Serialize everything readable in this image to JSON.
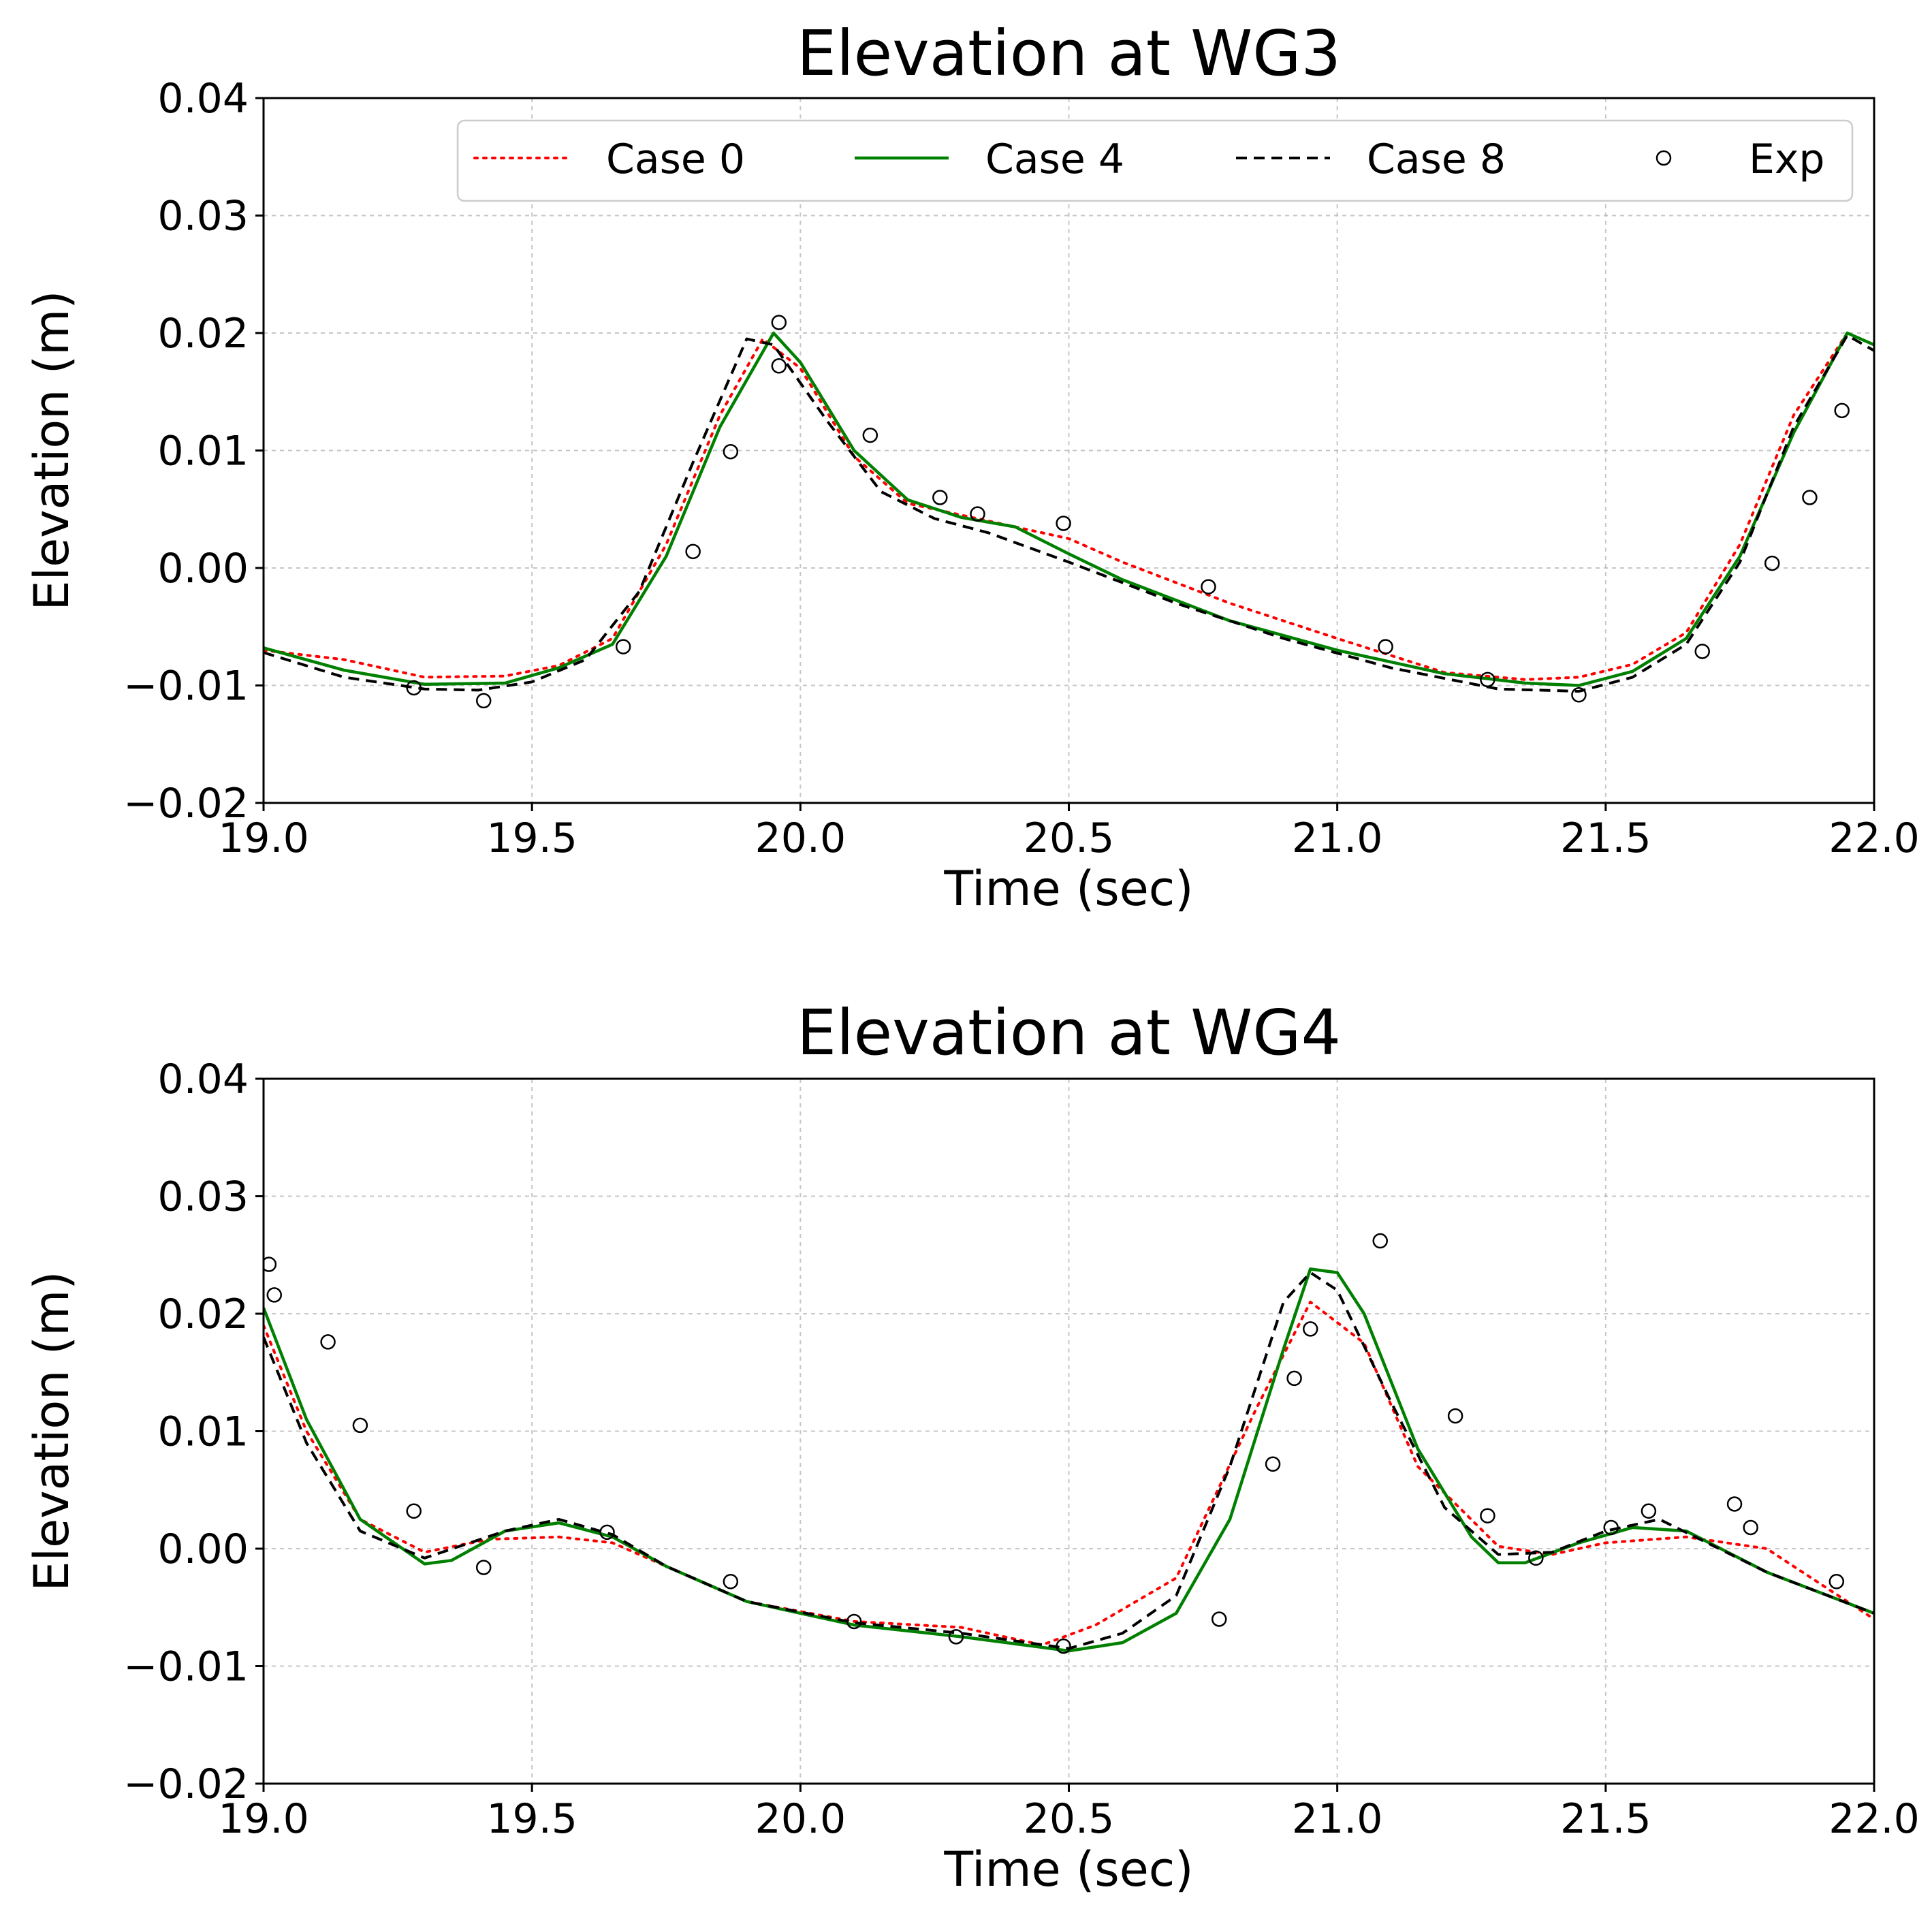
{
  "chart_data": [
    {
      "type": "line",
      "title": "Elevation at WG3",
      "xlabel": "Time (sec)",
      "ylabel": "Elevation (m)",
      "xlim": [
        19.0,
        22.0
      ],
      "ylim": [
        -0.02,
        0.04
      ],
      "xticks": [
        "19.0",
        "19.5",
        "20.0",
        "20.5",
        "21.0",
        "21.5",
        "22.0"
      ],
      "yticks": [
        "−0.02",
        "−0.01",
        "0.00",
        "0.01",
        "0.02",
        "0.03",
        "0.04"
      ],
      "grid": true,
      "legend_position": "top-right",
      "series": [
        {
          "name": "Case 0",
          "style": "dotted",
          "color": "#ff0000",
          "x": [
            19.0,
            19.15,
            19.3,
            19.45,
            19.55,
            19.65,
            19.75,
            19.85,
            19.93,
            20.0,
            20.1,
            20.2,
            20.3,
            20.4,
            20.5,
            20.6,
            20.8,
            21.0,
            21.2,
            21.35,
            21.45,
            21.55,
            21.65,
            21.75,
            21.85,
            21.95,
            22.0
          ],
          "y": [
            -0.007,
            -0.0078,
            -0.0093,
            -0.0092,
            -0.0083,
            -0.006,
            0.002,
            0.013,
            0.0195,
            0.017,
            0.0095,
            0.0055,
            0.0045,
            0.0035,
            0.0025,
            0.0005,
            -0.003,
            -0.006,
            -0.0089,
            -0.0095,
            -0.0093,
            -0.0082,
            -0.0055,
            0.002,
            0.013,
            0.02,
            0.019
          ]
        },
        {
          "name": "Case 4",
          "style": "solid",
          "color": "#008000",
          "x": [
            19.0,
            19.15,
            19.3,
            19.45,
            19.55,
            19.65,
            19.75,
            19.85,
            19.95,
            20.0,
            20.1,
            20.2,
            20.3,
            20.4,
            20.5,
            20.6,
            20.8,
            21.0,
            21.2,
            21.35,
            21.45,
            21.55,
            21.65,
            21.75,
            21.85,
            21.95,
            22.0
          ],
          "y": [
            -0.0068,
            -0.0087,
            -0.0099,
            -0.0098,
            -0.0085,
            -0.0065,
            0.001,
            0.012,
            0.02,
            0.0175,
            0.01,
            0.0058,
            0.0043,
            0.0035,
            0.0012,
            -0.001,
            -0.0045,
            -0.007,
            -0.009,
            -0.0098,
            -0.01,
            -0.0088,
            -0.006,
            0.001,
            0.0115,
            0.02,
            0.019
          ]
        },
        {
          "name": "Case 8",
          "style": "dashed",
          "color": "#000000",
          "x": [
            19.0,
            19.15,
            19.3,
            19.4,
            19.5,
            19.6,
            19.7,
            19.8,
            19.9,
            19.95,
            20.05,
            20.15,
            20.25,
            20.35,
            20.5,
            20.7,
            20.9,
            21.1,
            21.3,
            21.45,
            21.55,
            21.65,
            21.75,
            21.85,
            21.95,
            22.0
          ],
          "y": [
            -0.0072,
            -0.0093,
            -0.0103,
            -0.0104,
            -0.0097,
            -0.0078,
            -0.002,
            0.009,
            0.0195,
            0.019,
            0.0125,
            0.0065,
            0.0042,
            0.003,
            0.0005,
            -0.003,
            -0.006,
            -0.0085,
            -0.0103,
            -0.0105,
            -0.0093,
            -0.0065,
            0.0005,
            0.012,
            0.0198,
            0.0185
          ]
        },
        {
          "name": "Exp",
          "style": "markers",
          "color": "#000000",
          "x": [
            19.28,
            19.41,
            19.67,
            19.8,
            19.87,
            19.96,
            19.96,
            20.13,
            20.26,
            20.33,
            20.49,
            20.76,
            21.09,
            21.28,
            21.45,
            21.68,
            21.81,
            21.88,
            21.94
          ],
          "y": [
            -0.0102,
            -0.0113,
            -0.0067,
            0.0014,
            0.0099,
            0.0209,
            0.0172,
            0.0113,
            0.006,
            0.0046,
            0.0038,
            -0.0016,
            -0.0067,
            -0.0095,
            -0.0108,
            -0.0071,
            0.0004,
            0.006,
            0.0134
          ]
        }
      ]
    },
    {
      "type": "line",
      "title": "Elevation at WG4",
      "xlabel": "Time (sec)",
      "ylabel": "Elevation (m)",
      "xlim": [
        19.0,
        22.0
      ],
      "ylim": [
        -0.02,
        0.04
      ],
      "xticks": [
        "19.0",
        "19.5",
        "20.0",
        "20.5",
        "21.0",
        "21.5",
        "22.0"
      ],
      "yticks": [
        "−0.02",
        "−0.01",
        "0.00",
        "0.01",
        "0.02",
        "0.03",
        "0.04"
      ],
      "grid": true,
      "series": [
        {
          "name": "Case 0",
          "style": "dotted",
          "color": "#ff0000",
          "x": [
            19.0,
            19.08,
            19.18,
            19.3,
            19.42,
            19.55,
            19.65,
            19.75,
            19.9,
            20.1,
            20.3,
            20.45,
            20.55,
            20.7,
            20.85,
            20.95,
            21.05,
            21.15,
            21.3,
            21.4,
            21.5,
            21.65,
            21.8,
            21.95,
            22.0
          ],
          "y": [
            0.019,
            0.01,
            0.0025,
            -0.0003,
            0.0008,
            0.001,
            0.0005,
            -0.0015,
            -0.0045,
            -0.0062,
            -0.0067,
            -0.0082,
            -0.0065,
            -0.0025,
            0.012,
            0.021,
            0.0175,
            0.007,
            0.0002,
            -0.0005,
            0.0005,
            0.001,
            0.0,
            -0.0045,
            -0.006
          ]
        },
        {
          "name": "Case 4",
          "style": "solid",
          "color": "#008000",
          "x": [
            19.0,
            19.08,
            19.18,
            19.3,
            19.35,
            19.45,
            19.55,
            19.65,
            19.75,
            19.9,
            20.1,
            20.3,
            20.5,
            20.6,
            20.7,
            20.8,
            20.9,
            20.95,
            21.0,
            21.05,
            21.15,
            21.25,
            21.3,
            21.35,
            21.45,
            21.55,
            21.65,
            21.8,
            22.0
          ],
          "y": [
            0.0205,
            0.011,
            0.0025,
            -0.0013,
            -0.001,
            0.0015,
            0.0022,
            0.001,
            -0.0015,
            -0.0045,
            -0.0065,
            -0.0075,
            -0.0087,
            -0.008,
            -0.0055,
            0.0025,
            0.017,
            0.0238,
            0.0235,
            0.02,
            0.0085,
            0.001,
            -0.0012,
            -0.0012,
            0.0005,
            0.0018,
            0.0015,
            -0.002,
            -0.0055
          ]
        },
        {
          "name": "Case 8",
          "style": "dashed",
          "color": "#000000",
          "x": [
            19.0,
            19.08,
            19.18,
            19.3,
            19.45,
            19.55,
            19.65,
            19.75,
            19.9,
            20.1,
            20.3,
            20.5,
            20.6,
            20.7,
            20.8,
            20.9,
            20.95,
            21.0,
            21.1,
            21.2,
            21.3,
            21.4,
            21.5,
            21.6,
            21.8,
            22.0
          ],
          "y": [
            0.018,
            0.009,
            0.0015,
            -0.0008,
            0.0015,
            0.0025,
            0.0012,
            -0.0015,
            -0.0045,
            -0.0063,
            -0.0072,
            -0.0085,
            -0.0072,
            -0.004,
            0.007,
            0.021,
            0.0235,
            0.022,
            0.0125,
            0.0035,
            -0.0005,
            -0.0003,
            0.0015,
            0.0025,
            -0.002,
            -0.0055
          ]
        },
        {
          "name": "Exp",
          "style": "markers",
          "color": "#000000",
          "x": [
            19.01,
            19.02,
            19.12,
            19.18,
            19.28,
            19.41,
            19.64,
            19.87,
            20.1,
            20.29,
            20.49,
            20.78,
            20.88,
            20.92,
            20.95,
            21.08,
            21.22,
            21.28,
            21.37,
            21.51,
            21.58,
            21.74,
            21.77,
            21.93
          ],
          "y": [
            0.0242,
            0.0216,
            0.0176,
            0.0105,
            0.0032,
            -0.0016,
            0.0014,
            -0.0028,
            -0.0062,
            -0.0075,
            -0.0083,
            -0.006,
            0.0072,
            0.0145,
            0.0187,
            0.0262,
            0.0113,
            0.0028,
            -0.0008,
            0.0018,
            0.0032,
            0.0038,
            0.0018,
            -0.0028
          ]
        }
      ]
    }
  ]
}
